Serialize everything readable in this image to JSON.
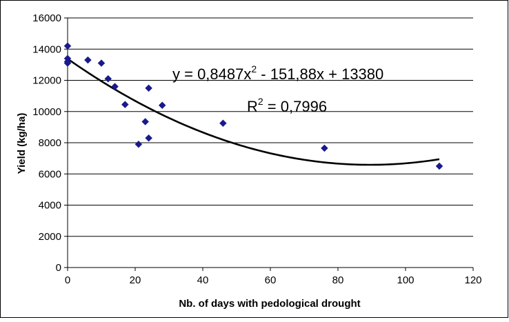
{
  "chart_data": {
    "type": "scatter",
    "xlabel": "Nb. of days with pedological drought",
    "ylabel": "Yield (kg/ha)",
    "xlim": [
      0,
      120
    ],
    "ylim": [
      0,
      16000
    ],
    "xticks": [
      "0",
      "20",
      "40",
      "60",
      "80",
      "100",
      "120"
    ],
    "yticks": [
      "0",
      "2000",
      "4000",
      "6000",
      "8000",
      "10000",
      "12000",
      "14000",
      "16000"
    ],
    "grid": "horizontal",
    "marker_color": "#1a1a8c",
    "trend_color": "#000000",
    "points": [
      {
        "x": 0,
        "y": 14200
      },
      {
        "x": 0,
        "y": 13400
      },
      {
        "x": 0,
        "y": 13200
      },
      {
        "x": 0,
        "y": 13100
      },
      {
        "x": 6,
        "y": 13300
      },
      {
        "x": 10,
        "y": 13100
      },
      {
        "x": 12,
        "y": 12100
      },
      {
        "x": 14,
        "y": 11600
      },
      {
        "x": 17,
        "y": 10450
      },
      {
        "x": 21,
        "y": 7900
      },
      {
        "x": 23,
        "y": 9350
      },
      {
        "x": 24,
        "y": 11500
      },
      {
        "x": 24,
        "y": 8300
      },
      {
        "x": 28,
        "y": 10400
      },
      {
        "x": 46,
        "y": 9250
      },
      {
        "x": 76,
        "y": 7650
      },
      {
        "x": 110,
        "y": 6500
      }
    ],
    "trendline": {
      "type": "polynomial",
      "coefficients": [
        0.8487,
        -151.88,
        13380
      ],
      "x_range": [
        0,
        110
      ]
    },
    "annotations": {
      "equation_main": "y = 0,8487x",
      "equation_sup": "2",
      "equation_rest": " - 151,88x + 13380",
      "r2_main": "R",
      "r2_sup": "2",
      "r2_rest": " = 0,7996"
    }
  }
}
